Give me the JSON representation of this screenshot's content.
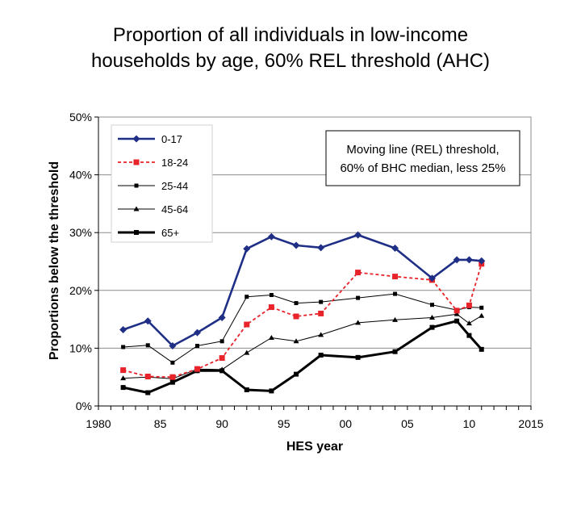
{
  "title_line1": "Proportion of all individuals in low-income",
  "title_line2": "households by age, 60% REL threshold (AHC)",
  "note_line1": "Moving line (REL) threshold,",
  "note_line2": "60% of  BHC median, less 25%",
  "chart_data": {
    "type": "line",
    "title": "Proportion of all individuals in low-income households by age, 60% REL threshold (AHC)",
    "xlabel": "HES year",
    "ylabel": "Proportions below the threshold",
    "xlim": [
      1980,
      2015
    ],
    "ylim": [
      0,
      50
    ],
    "x_ticks": [
      1980,
      1985,
      1990,
      1995,
      2000,
      2005,
      2010,
      2015
    ],
    "x_tick_labels": [
      "1980",
      "85",
      "90",
      "95",
      "00",
      "05",
      "10",
      "2015"
    ],
    "y_ticks": [
      0,
      10,
      20,
      30,
      40,
      50
    ],
    "y_tick_labels": [
      "0%",
      "10%",
      "20%",
      "30%",
      "40%",
      "50%"
    ],
    "grid": "horizontal",
    "legend_position": "top-left",
    "x": [
      1982,
      1984,
      1986,
      1988,
      1990,
      1992,
      1994,
      1996,
      1998,
      2001,
      2004,
      2007,
      2009,
      2010,
      2011
    ],
    "series": [
      {
        "name": "0-17",
        "color": "#1f2f86",
        "style": "thick-diamond",
        "values": [
          13.2,
          14.7,
          10.4,
          12.7,
          15.3,
          27.2,
          29.3,
          27.8,
          27.4,
          29.6,
          27.3,
          22.1,
          25.3,
          25.3,
          25.1
        ]
      },
      {
        "name": "18-24",
        "color": "#e8232a",
        "style": "dashed-square",
        "values": [
          6.2,
          5.1,
          5.0,
          6.4,
          8.3,
          14.1,
          17.1,
          15.5,
          16.0,
          23.1,
          22.4,
          21.8,
          16.5,
          17.4,
          24.6
        ]
      },
      {
        "name": "25-44",
        "color": "#000000",
        "style": "thin-square",
        "values": [
          10.2,
          10.5,
          7.5,
          10.4,
          11.2,
          18.9,
          19.2,
          17.8,
          18.0,
          18.7,
          19.4,
          17.5,
          16.6,
          17.1,
          17.0
        ]
      },
      {
        "name": "45-64",
        "color": "#000000",
        "style": "thin-triangle",
        "values": [
          4.8,
          5.0,
          4.7,
          6.4,
          6.3,
          9.2,
          11.8,
          11.2,
          12.3,
          14.4,
          14.9,
          15.3,
          15.9,
          14.3,
          15.6
        ]
      },
      {
        "name": "65+",
        "color": "#000000",
        "style": "thick-square",
        "values": [
          3.2,
          2.3,
          4.1,
          6.1,
          6.1,
          2.8,
          2.6,
          5.5,
          8.8,
          8.4,
          9.4,
          13.6,
          14.7,
          12.2,
          9.8
        ]
      }
    ]
  }
}
